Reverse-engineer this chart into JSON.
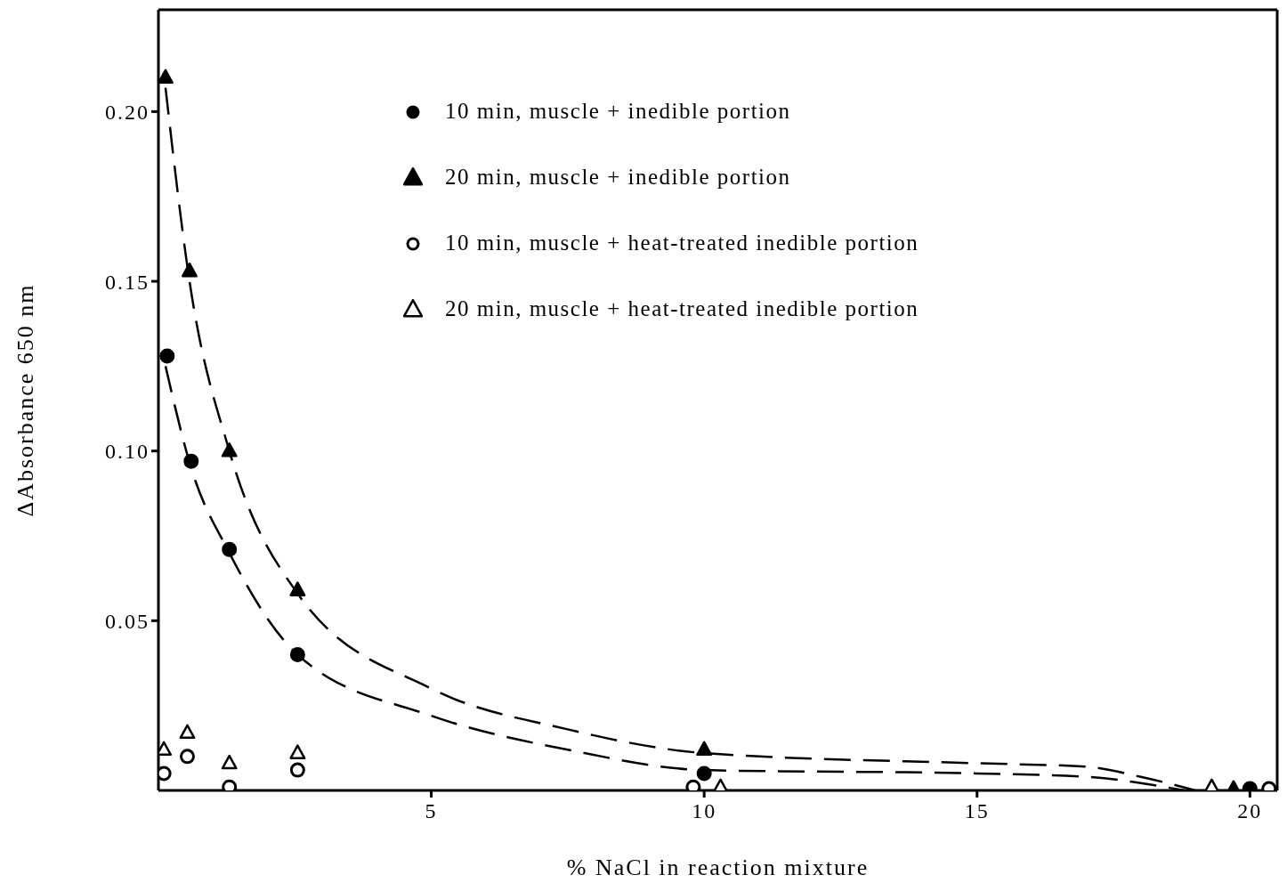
{
  "chart_data": {
    "type": "scatter",
    "xlabel": "% NaCl in reaction mixture",
    "ylabel": "ΔAbsorbance 650 nm",
    "xlim": [
      0,
      20.5
    ],
    "ylim": [
      0,
      0.23
    ],
    "xticks": [
      5,
      10,
      15,
      20
    ],
    "yticks": [
      {
        "value": 0.05,
        "label": "0.05"
      },
      {
        "value": 0.1,
        "label": "0.10"
      },
      {
        "value": 0.15,
        "label": "0.15"
      },
      {
        "value": 0.2,
        "label": "0.20"
      }
    ],
    "grid": false,
    "legend": "top",
    "series": [
      {
        "name": "10 min, muscle + inedible portion",
        "marker": "circle",
        "color": "#000000",
        "x": [
          0.16,
          0.6,
          1.3,
          2.55,
          10.0,
          20.0
        ],
        "values": [
          0.128,
          0.097,
          0.071,
          0.04,
          0.005,
          0.0005
        ]
      },
      {
        "name": "20 min, muscle + inedible portion",
        "marker": "triangle",
        "color": "#000000",
        "x": [
          0.13,
          0.57,
          1.3,
          2.55,
          10.0,
          19.7
        ],
        "values": [
          0.21,
          0.153,
          0.1,
          0.059,
          0.012,
          0.0005
        ]
      },
      {
        "name": "10 min, muscle + heat-treated inedible portion",
        "marker": "circle",
        "color": "#ffffff",
        "x": [
          0.1,
          0.53,
          1.3,
          2.55,
          9.8,
          20.35
        ],
        "values": [
          0.005,
          0.01,
          0.001,
          0.006,
          0.001,
          0.0005
        ]
      },
      {
        "name": "20 min, muscle + heat-treated inedible portion",
        "marker": "triangle",
        "color": "#ffffff",
        "x": [
          0.1,
          0.53,
          1.3,
          2.55,
          10.3,
          19.3
        ],
        "values": [
          0.012,
          0.017,
          0.008,
          0.011,
          0.001,
          0.001
        ]
      },
      {
        "type": "line",
        "marker": "none",
        "line_style": "dashed",
        "color": "#000000",
        "x": [
          0.13,
          0.57,
          1.3,
          2.55,
          5,
          7.5,
          10,
          15,
          17,
          18,
          19
        ],
        "values": [
          0.207,
          0.15,
          0.1,
          0.058,
          0.03,
          0.018,
          0.011,
          0.008,
          0.007,
          0.004,
          0.0
        ]
      },
      {
        "type": "line",
        "marker": "none",
        "line_style": "dashed",
        "color": "#000000",
        "x": [
          0.13,
          0.6,
          1.3,
          2.55,
          5,
          7.5,
          10,
          15,
          17,
          18.8
        ],
        "values": [
          0.125,
          0.095,
          0.07,
          0.04,
          0.022,
          0.012,
          0.006,
          0.005,
          0.004,
          0.0
        ]
      }
    ]
  }
}
